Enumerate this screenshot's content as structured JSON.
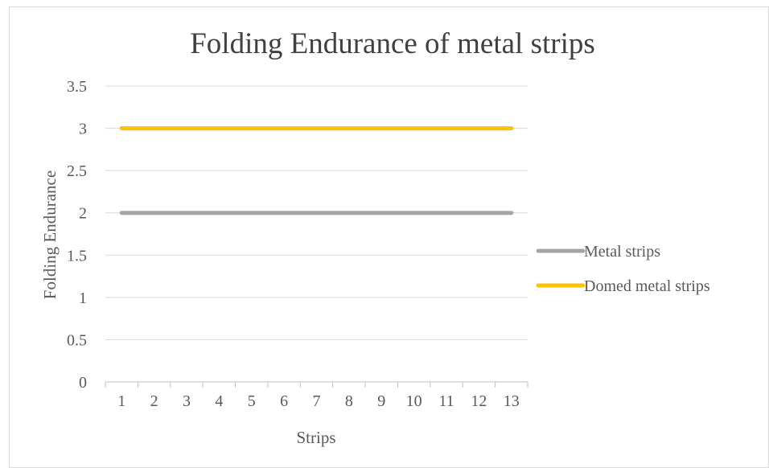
{
  "chart_data": {
    "type": "line",
    "title": "Folding Endurance of metal strips",
    "xlabel": "Strips",
    "ylabel": "Folding Endurance",
    "categories": [
      "1",
      "2",
      "3",
      "4",
      "5",
      "6",
      "7",
      "8",
      "9",
      "10",
      "11",
      "12",
      "13"
    ],
    "yticks": [
      "0",
      "0.5",
      "1",
      "1.5",
      "2",
      "2.5",
      "3",
      "3.5"
    ],
    "ylim": [
      0,
      3.5
    ],
    "grid": true,
    "legend_position": "right",
    "series": [
      {
        "name": "Metal strips",
        "color": "#a5a5a5",
        "values": [
          2,
          2,
          2,
          2,
          2,
          2,
          2,
          2,
          2,
          2,
          2,
          2,
          2
        ]
      },
      {
        "name": "Domed metal strips",
        "color": "#ffc000",
        "values": [
          3,
          3,
          3,
          3,
          3,
          3,
          3,
          3,
          3,
          3,
          3,
          3,
          3
        ]
      }
    ]
  }
}
